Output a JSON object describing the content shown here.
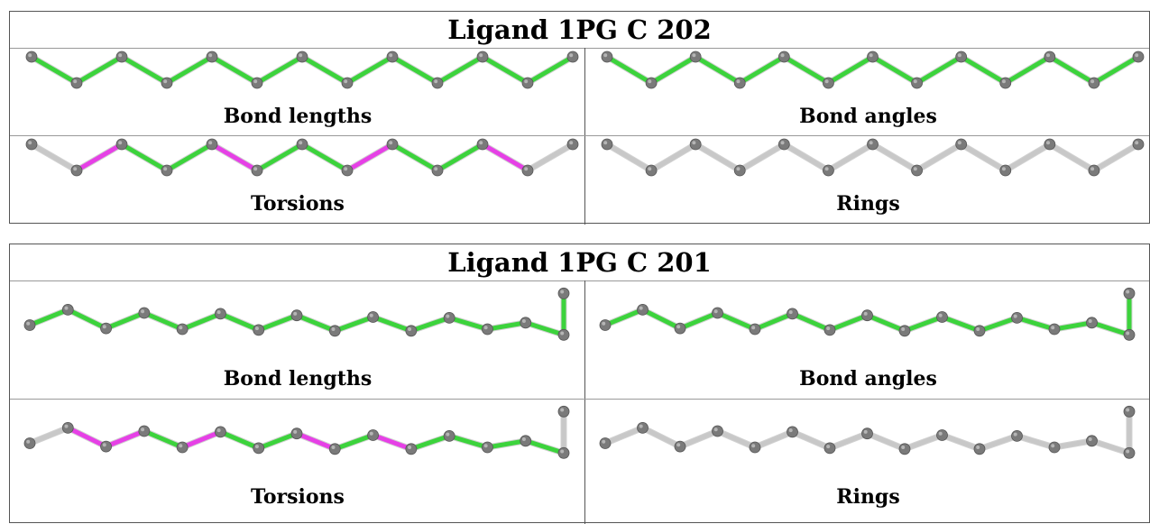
{
  "panels": [
    {
      "title": "Ligand 1PG C 202",
      "cells": [
        {
          "label": "Bond lengths",
          "colors": [
            "g",
            "g",
            "g",
            "g",
            "g",
            "g",
            "g",
            "g",
            "g",
            "g",
            "g",
            "g"
          ]
        },
        {
          "label": "Bond angles",
          "colors": [
            "g",
            "g",
            "g",
            "g",
            "g",
            "g",
            "g",
            "g",
            "g",
            "g",
            "g",
            "g"
          ]
        },
        {
          "label": "Torsions",
          "colors": [
            "w",
            "m",
            "g",
            "g",
            "m",
            "g",
            "g",
            "m",
            "g",
            "g",
            "m",
            "w"
          ]
        },
        {
          "label": "Rings",
          "colors": [
            "w",
            "w",
            "w",
            "w",
            "w",
            "w",
            "w",
            "w",
            "w",
            "w",
            "w",
            "w"
          ]
        }
      ]
    },
    {
      "title": "Ligand 1PG C 201",
      "cells": [
        {
          "label": "Bond lengths",
          "colors": [
            "g",
            "g",
            "g",
            "g",
            "g",
            "g",
            "g",
            "g",
            "g",
            "g",
            "g",
            "g",
            "g",
            "g",
            "g"
          ]
        },
        {
          "label": "Bond angles",
          "colors": [
            "g",
            "g",
            "g",
            "g",
            "g",
            "g",
            "g",
            "g",
            "g",
            "g",
            "g",
            "g",
            "g",
            "g",
            "g"
          ]
        },
        {
          "label": "Torsions",
          "colors": [
            "w",
            "m",
            "m",
            "g",
            "m",
            "g",
            "g",
            "m",
            "g",
            "m",
            "g",
            "g",
            "g",
            "g",
            "w"
          ]
        },
        {
          "label": "Rings",
          "colors": [
            "w",
            "w",
            "w",
            "w",
            "w",
            "w",
            "w",
            "w",
            "w",
            "w",
            "w",
            "w",
            "w",
            "w",
            "w"
          ]
        }
      ]
    }
  ],
  "legend_colors": {
    "g": "#3cd33c",
    "m": "#e640e6",
    "w": "#c8c8c8",
    "atom": "#7a7a7a"
  }
}
